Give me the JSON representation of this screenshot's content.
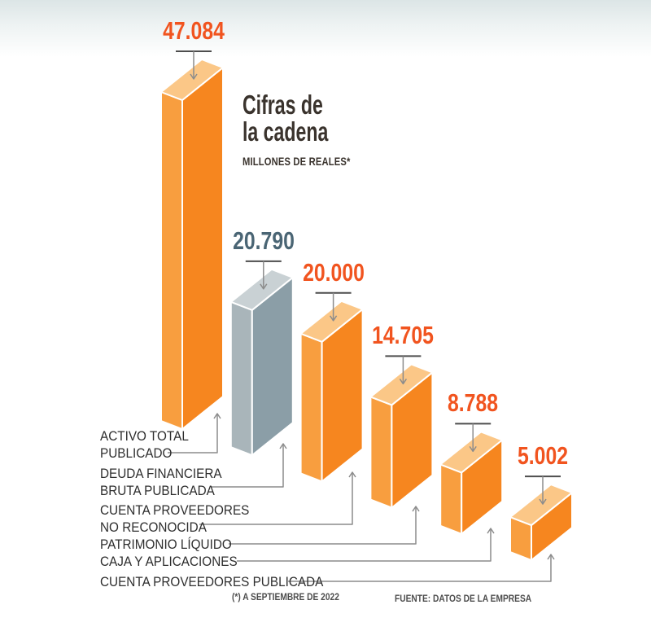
{
  "title": {
    "line1": "Cifras de",
    "line2": "la cadena",
    "subtitle": "MILLONES DE REALES*"
  },
  "footnotes": {
    "left": "(*) A SEPTIEMBRE DE 2022",
    "right": "FUENTE: DATOS DE LA EMPRESA"
  },
  "colors": {
    "bg_top": "#dce5e6",
    "title_text": "#3a332d",
    "label_text": "#2e2e2e",
    "footnote_text": "#4d4d4d",
    "value_orange": "#f1541f",
    "value_gray": "#4a6574",
    "underline": "#4d4d4d",
    "connector": "#8c8c8c",
    "bar_orange": {
      "left": "#f89e3f",
      "right": "#f6861f",
      "top": "#fbc787"
    },
    "bar_gray": {
      "left": "#a9b5ba",
      "right": "#8b9ea7",
      "top": "#c9d1d4"
    }
  },
  "chart_data": {
    "type": "bar",
    "style": "3d-isometric-descending-steps",
    "title": "Cifras de la cadena",
    "units_label": "MILLONES DE REALES*",
    "source_note": "FUENTE: DATOS DE LA EMPRESA",
    "date_note": "(*) A SEPTIEMBRE DE 2022",
    "ylim": [
      0,
      47084
    ],
    "bars": [
      {
        "label": "ACTIVO TOTAL PUBLICADO",
        "label_lines": [
          "ACTIVO TOTAL",
          "PUBLICADO"
        ],
        "value": 47084,
        "display": "47.084",
        "color": "orange"
      },
      {
        "label": "DEUDA FINANCIERA BRUTA PUBLICADA",
        "label_lines": [
          "DEUDA FINANCIERA",
          "BRUTA PUBLICADA"
        ],
        "value": 20790,
        "display": "20.790",
        "color": "gray"
      },
      {
        "label": "CUENTA PROVEEDORES NO RECONOCIDA",
        "label_lines": [
          "CUENTA PROVEEDORES",
          "NO RECONOCIDA"
        ],
        "value": 20000,
        "display": "20.000",
        "color": "orange"
      },
      {
        "label": "PATRIMONIO LÍQUIDO",
        "label_lines": [
          "PATRIMONIO LÍQUIDO"
        ],
        "value": 14705,
        "display": "14.705",
        "color": "orange"
      },
      {
        "label": "CAJA Y APLICACIONES",
        "label_lines": [
          "CAJA Y APLICACIONES"
        ],
        "value": 8788,
        "display": "8.788",
        "color": "orange"
      },
      {
        "label": "CUENTA PROVEEDORES PUBLICADA",
        "label_lines": [
          "CUENTA PROVEEDORES PUBLICADA"
        ],
        "value": 5002,
        "display": "5.002",
        "color": "orange"
      }
    ]
  }
}
